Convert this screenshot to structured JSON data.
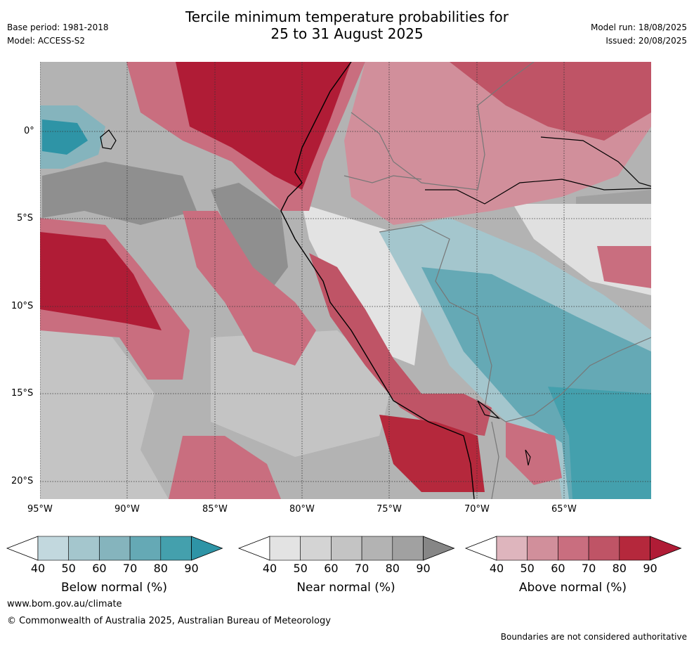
{
  "header": {
    "title_line1": "Tercile minimum temperature probabilities for",
    "title_line2": "25 to 31 August 2025",
    "base_period": "Base period: 1981-2018",
    "model": "Model: ACCESS-S2",
    "model_run": "Model run: 18/08/2025",
    "issued": "Issued: 20/08/2025"
  },
  "map": {
    "lat_labels": [
      "0°",
      "5°S",
      "10°S",
      "15°S",
      "20°S"
    ],
    "lon_labels": [
      "95°W",
      "90°W",
      "85°W",
      "80°W",
      "75°W",
      "70°W",
      "65°W"
    ]
  },
  "colorbars": [
    {
      "label": "Below normal (%)",
      "ticks": [
        "40",
        "50",
        "60",
        "70",
        "80",
        "90"
      ],
      "colors": [
        "#ffffff",
        "#c2d8de",
        "#a4c6cd",
        "#85b4bd",
        "#65a9b5",
        "#44a0ad",
        "#2e94a6"
      ]
    },
    {
      "label": "Near normal (%)",
      "ticks": [
        "40",
        "50",
        "60",
        "70",
        "80",
        "90"
      ],
      "colors": [
        "#ffffff",
        "#e3e3e3",
        "#d4d4d4",
        "#c4c4c4",
        "#b3b3b3",
        "#a1a1a1",
        "#868686"
      ]
    },
    {
      "label": "Above normal (%)",
      "ticks": [
        "40",
        "50",
        "60",
        "70",
        "80",
        "90"
      ],
      "colors": [
        "#ffffff",
        "#deb5bd",
        "#d18f9b",
        "#c96e7f",
        "#bf5466",
        "#b5283c",
        "#b01c36"
      ]
    }
  ],
  "footer": {
    "website": "www.bom.gov.au/climate",
    "copyright": "© Commonwealth of Australia 2025, Australian Bureau of Meteorology",
    "disclaimer": "Boundaries are not considered authoritative"
  }
}
